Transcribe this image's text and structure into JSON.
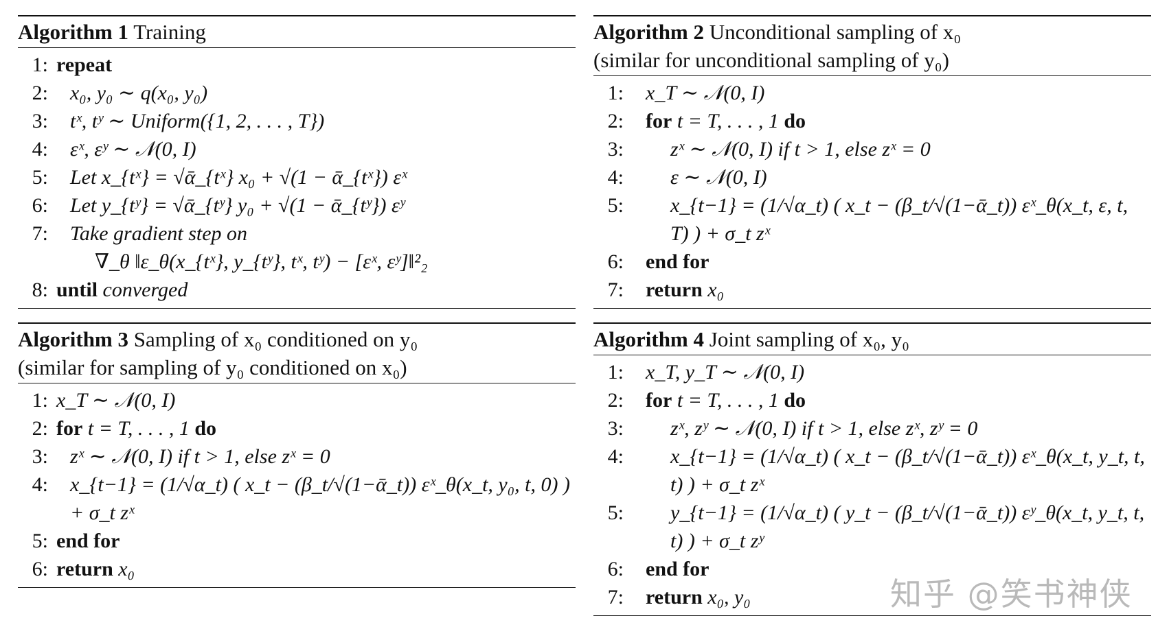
{
  "algorithms": [
    {
      "label": "Algorithm 1",
      "title": " Training",
      "title2": "",
      "lines": [
        {
          "num": "1:",
          "kw": "repeat",
          "text": "",
          "kw2": ""
        },
        {
          "num": "2:",
          "kw": "",
          "text": "x₀, y₀ ∼ q(x₀, y₀)",
          "kw2": ""
        },
        {
          "num": "3:",
          "kw": "",
          "text": "tˣ, tʸ ∼ Uniform({1, 2, . . . , T})",
          "kw2": ""
        },
        {
          "num": "4:",
          "kw": "",
          "text": "εˣ, εʸ ∼ 𝒩(0, I)",
          "kw2": ""
        },
        {
          "num": "5:",
          "kw": "",
          "text": "Let x_{tˣ} = √ᾱ_{tˣ} x₀ + √(1 − ᾱ_{tˣ}) εˣ",
          "kw2": ""
        },
        {
          "num": "6:",
          "kw": "",
          "text": "Let y_{tʸ} = √ᾱ_{tʸ} y₀ + √(1 − ᾱ_{tʸ}) εʸ",
          "kw2": ""
        },
        {
          "num": "7:",
          "kw": "",
          "text": "Take gradient step on",
          "kw2": ""
        },
        {
          "num": "",
          "kw": "",
          "text": "∇_θ ‖ε_θ(x_{tˣ}, y_{tʸ}, tˣ, tʸ) − [εˣ, εʸ]‖²₂",
          "kw2": ""
        },
        {
          "num": "8:",
          "kw": "until",
          "text": " converged",
          "kw2": ""
        }
      ]
    },
    {
      "label": "Algorithm 2",
      "title": " Unconditional sampling of x₀",
      "title2": "(similar for unconditional sampling of y₀)",
      "lines": [
        {
          "num": "1:",
          "kw": "",
          "text": "x_T ∼ 𝒩(0, I)",
          "kw2": ""
        },
        {
          "num": "2:",
          "kw": "for",
          "text": " t = T, . . . , 1 ",
          "kw2": "do"
        },
        {
          "num": "3:",
          "kw": "",
          "text": "zˣ ∼ 𝒩(0, I) if t > 1, else zˣ = 0",
          "kw2": ""
        },
        {
          "num": "4:",
          "kw": "",
          "text": "ε ∼ 𝒩(0, I)",
          "kw2": ""
        },
        {
          "num": "5:",
          "kw": "",
          "text": "x_{t−1} = (1/√α_t) ( x_t − (β_t/√(1−ᾱ_t)) εˣ_θ(x_t, ε, t, T) ) + σ_t zˣ",
          "kw2": ""
        },
        {
          "num": "6:",
          "kw": "end for",
          "text": "",
          "kw2": ""
        },
        {
          "num": "7:",
          "kw": "return",
          "text": " x₀",
          "kw2": ""
        }
      ]
    },
    {
      "label": "Algorithm 3",
      "title": " Sampling of x₀ conditioned on y₀",
      "title2": "(similar for sampling of y₀ conditioned on x₀)",
      "lines": [
        {
          "num": "1:",
          "kw": "",
          "text": "x_T ∼ 𝒩(0, I)",
          "kw2": ""
        },
        {
          "num": "2:",
          "kw": "for",
          "text": " t = T, . . . , 1 ",
          "kw2": "do"
        },
        {
          "num": "3:",
          "kw": "",
          "text": "zˣ ∼ 𝒩(0, I) if t > 1, else zˣ = 0",
          "kw2": ""
        },
        {
          "num": "4:",
          "kw": "",
          "text": "x_{t−1} = (1/√α_t) ( x_t − (β_t/√(1−ᾱ_t)) εˣ_θ(x_t, y₀, t, 0) ) + σ_t zˣ",
          "kw2": ""
        },
        {
          "num": "5:",
          "kw": "end for",
          "text": "",
          "kw2": ""
        },
        {
          "num": "6:",
          "kw": "return",
          "text": " x₀",
          "kw2": ""
        }
      ]
    },
    {
      "label": "Algorithm 4",
      "title": " Joint sampling of x₀, y₀",
      "title2": "",
      "lines": [
        {
          "num": "1:",
          "kw": "",
          "text": "x_T, y_T ∼ 𝒩(0, I)",
          "kw2": ""
        },
        {
          "num": "2:",
          "kw": "for",
          "text": " t = T, . . . , 1 ",
          "kw2": "do"
        },
        {
          "num": "3:",
          "kw": "",
          "text": "zˣ, zʸ ∼ 𝒩(0, I) if t > 1, else zˣ, zʸ = 0",
          "kw2": ""
        },
        {
          "num": "4:",
          "kw": "",
          "text": "x_{t−1} = (1/√α_t) ( x_t − (β_t/√(1−ᾱ_t)) εˣ_θ(x_t, y_t, t, t) ) + σ_t zˣ",
          "kw2": ""
        },
        {
          "num": "5:",
          "kw": "",
          "text": "y_{t−1} = (1/√α_t) ( y_t − (β_t/√(1−ᾱ_t)) εʸ_θ(x_t, y_t, t, t) ) + σ_t zʸ",
          "kw2": ""
        },
        {
          "num": "6:",
          "kw": "end for",
          "text": "",
          "kw2": ""
        },
        {
          "num": "7:",
          "kw": "return",
          "text": " x₀, y₀",
          "kw2": ""
        }
      ]
    }
  ],
  "watermark": "知乎 @笑书神侠"
}
